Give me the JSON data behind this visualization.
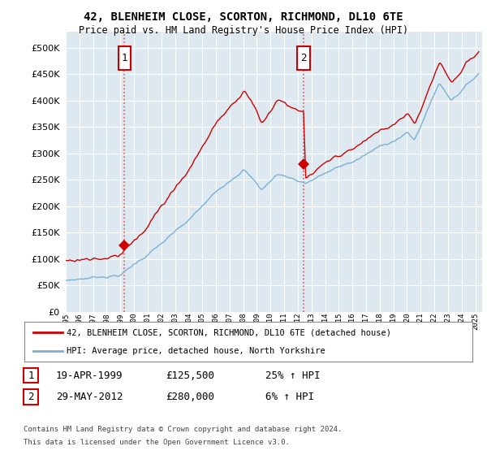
{
  "title": "42, BLENHEIM CLOSE, SCORTON, RICHMOND, DL10 6TE",
  "subtitle": "Price paid vs. HM Land Registry's House Price Index (HPI)",
  "sale1_price": 125500,
  "sale1_label": "1",
  "sale2_price": 280000,
  "sale2_label": "2",
  "legend1": "42, BLENHEIM CLOSE, SCORTON, RICHMOND, DL10 6TE (detached house)",
  "legend2": "HPI: Average price, detached house, North Yorkshire",
  "footer1": "Contains HM Land Registry data © Crown copyright and database right 2024.",
  "footer2": "This data is licensed under the Open Government Licence v3.0.",
  "table1_date": "19-APR-1999",
  "table1_price": "£125,500",
  "table1_hpi": "25% ↑ HPI",
  "table2_date": "29-MAY-2012",
  "table2_price": "£280,000",
  "table2_hpi": "6% ↑ HPI",
  "ylim_min": 0,
  "ylim_max": 530000,
  "background_color": "#dde8f0",
  "line_color_red": "#cc0000",
  "line_color_blue": "#7ab0d4",
  "vline_color": "#dd4444",
  "grid_color": "#ffffff",
  "marker_color_red": "#cc0000",
  "sale1_t": 1999.3,
  "sale2_t": 2012.42
}
